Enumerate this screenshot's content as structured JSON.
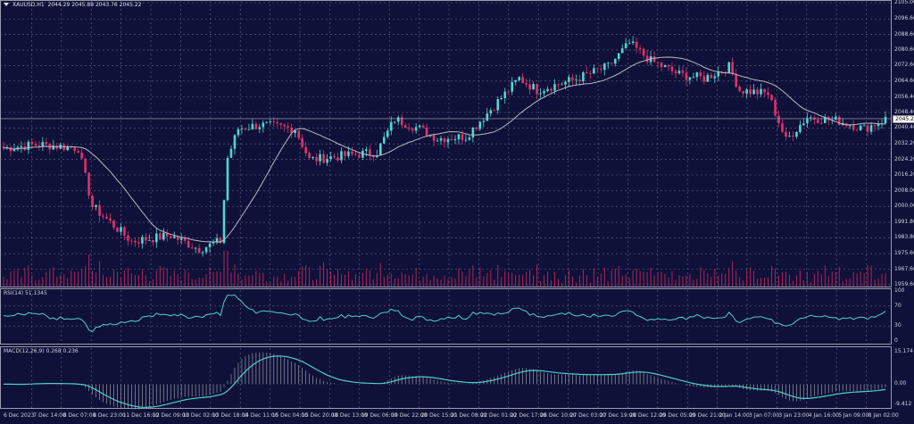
{
  "header": {
    "symbol": "XAUUSD,H1",
    "ohlc": "2044.29 2045.88 2043.76 2045.22"
  },
  "colors": {
    "background": "#0f1138",
    "bull": "#52d6d0",
    "bear": "#e2306c",
    "ma": "#b8b8c4",
    "rsi": "#4fd0c8",
    "macd": "#4fd0c8",
    "grid": "#6a6c88"
  },
  "price_axis": {
    "ticks": [
      "2105.00",
      "2096.60",
      "2088.60",
      "2080.60",
      "2072.60",
      "2064.60",
      "2056.40",
      "2048.40",
      "2040.40",
      "2032.20",
      "2024.20",
      "2016.20",
      "2008.00",
      "2000.00",
      "1991.80",
      "1983.80",
      "1975.60",
      "1967.60",
      "1959.60"
    ],
    "current": "2045.22"
  },
  "rsi": {
    "label": "RSI(14) 51.1345",
    "ticks": [
      "100",
      "70",
      "30",
      "0"
    ]
  },
  "macd": {
    "label": "MACD(12,26,9) 0.268 0.236",
    "ticks": [
      "15.174",
      "0.00",
      "-9.412"
    ]
  },
  "time_axis": [
    "6 Dec 2023",
    "7 Dec 14:00",
    "8 Dec 07:00",
    "8 Dec 23:00",
    "11 Dec 16:00",
    "12 Dec 09:00",
    "13 Dec 02:00",
    "13 Dec 18:00",
    "14 Dec 11:00",
    "15 Dec 04:00",
    "15 Dec 20:00",
    "18 Dec 13:00",
    "19 Dec 06:00",
    "19 Dec 22:00",
    "20 Dec 15:00",
    "21 Dec 08:00",
    "22 Dec 01:00",
    "22 Dec 17:00",
    "26 Dec 10:00",
    "27 Dec 03:00",
    "27 Dec 19:00",
    "28 Dec 12:00",
    "29 Dec 05:00",
    "29 Dec 21:00",
    "2 Jan 14:00",
    "3 Jan 07:00",
    "3 Jan 23:00",
    "4 Jan 16:00",
    "5 Jan 09:00",
    "8 Jan 02:00"
  ],
  "chart_data": {
    "type": "candlestick",
    "symbol": "XAUUSD",
    "timeframe": "H1",
    "ylim": [
      1959.6,
      2105.0
    ],
    "close_path": [
      [
        0,
        2030
      ],
      [
        10,
        2032
      ],
      [
        21,
        2030
      ],
      [
        25,
        2000
      ],
      [
        36,
        1982
      ],
      [
        47,
        1985
      ],
      [
        55,
        1978
      ],
      [
        61,
        1982
      ],
      [
        63,
        2025
      ],
      [
        66,
        2040
      ],
      [
        72,
        2042
      ],
      [
        82,
        2040
      ],
      [
        86,
        2024
      ],
      [
        95,
        2026
      ],
      [
        105,
        2028
      ],
      [
        110,
        2045
      ],
      [
        117,
        2040
      ],
      [
        122,
        2035
      ],
      [
        130,
        2036
      ],
      [
        137,
        2050
      ],
      [
        145,
        2066
      ],
      [
        150,
        2060
      ],
      [
        160,
        2065
      ],
      [
        170,
        2072
      ],
      [
        176,
        2084
      ],
      [
        182,
        2075
      ],
      [
        190,
        2068
      ],
      [
        197,
        2066
      ],
      [
        204,
        2072
      ],
      [
        207,
        2060
      ],
      [
        215,
        2058
      ],
      [
        220,
        2034
      ],
      [
        226,
        2046
      ],
      [
        235,
        2044
      ],
      [
        242,
        2040
      ],
      [
        248,
        2045
      ]
    ]
  }
}
